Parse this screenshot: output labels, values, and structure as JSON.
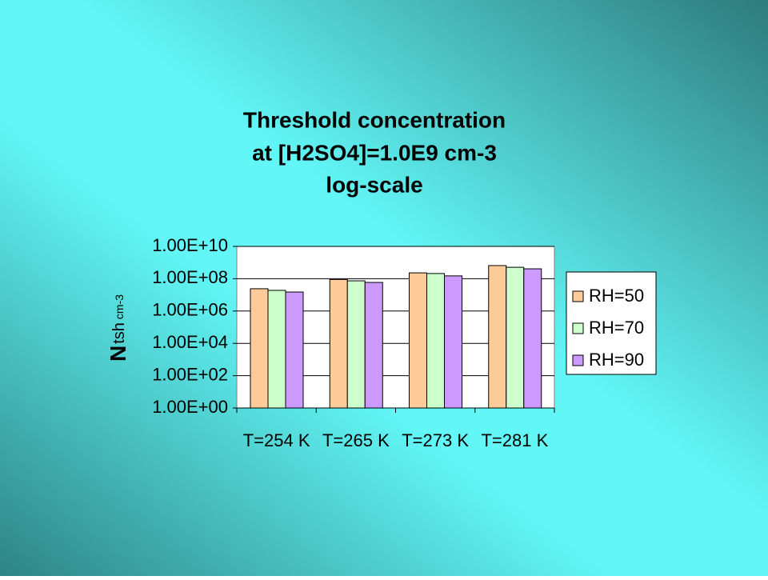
{
  "chart_data": {
    "type": "bar",
    "title": [
      "Threshold concentration",
      "at [H2SO4]=1.0E9 cm-3",
      "log-scale"
    ],
    "y_label": [
      "N",
      "tsh",
      "cm-3"
    ],
    "categories": [
      "T=254 K",
      "T=265 K",
      "T=273 K",
      "T=281 K"
    ],
    "series": [
      {
        "name": "RH=50",
        "color": "#ffcc99",
        "values": [
          24000000,
          90000000,
          230000000,
          650000000
        ]
      },
      {
        "name": "RH=70",
        "color": "#ccffcc",
        "values": [
          19000000,
          74000000,
          210000000,
          510000000
        ]
      },
      {
        "name": "RH=90",
        "color": "#cc99ff",
        "values": [
          15000000,
          59000000,
          150000000,
          410000000
        ]
      }
    ],
    "log_scale": true,
    "ylim": [
      1,
      10000000000
    ],
    "yticks": [
      {
        "value": 1,
        "label": "1.00E+00"
      },
      {
        "value": 100,
        "label": "1.00E+02"
      },
      {
        "value": 10000,
        "label": "1.00E+04"
      },
      {
        "value": 1000000,
        "label": "1.00E+06"
      },
      {
        "value": 100000000,
        "label": "1.00E+08"
      },
      {
        "value": 10000000000,
        "label": "1.00E+10"
      }
    ],
    "grid": true,
    "legend": "right"
  }
}
